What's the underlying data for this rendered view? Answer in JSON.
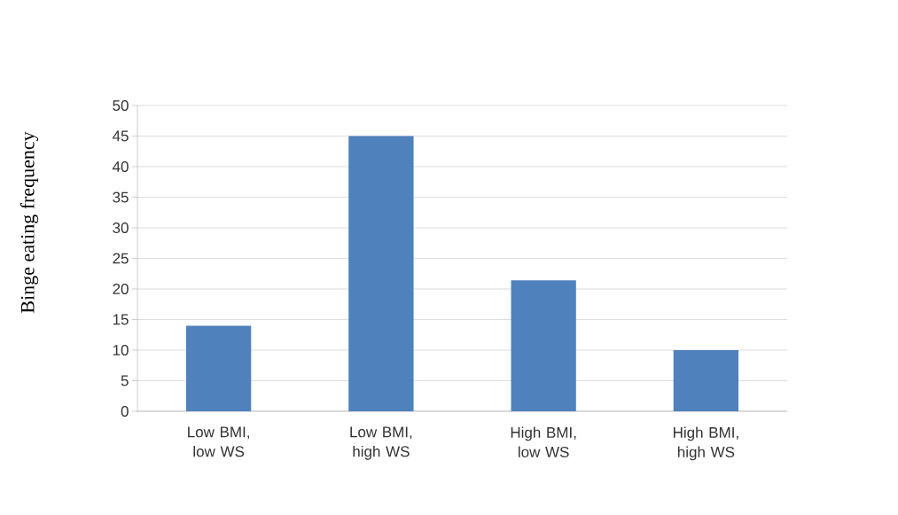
{
  "chart_data": {
    "type": "bar",
    "ylabel": "Binge eating frequency",
    "categories": [
      "Low BMI, low WS",
      "Low BMI, high WS",
      "High BMI, low WS",
      "High BMI, high WS"
    ],
    "values": [
      14,
      45,
      21.4,
      10
    ],
    "color": "#4f81bd",
    "ylim": [
      0,
      50
    ],
    "yticks": [
      0,
      5,
      10,
      15,
      20,
      25,
      30,
      35,
      40,
      45,
      50
    ],
    "grid": "y"
  }
}
